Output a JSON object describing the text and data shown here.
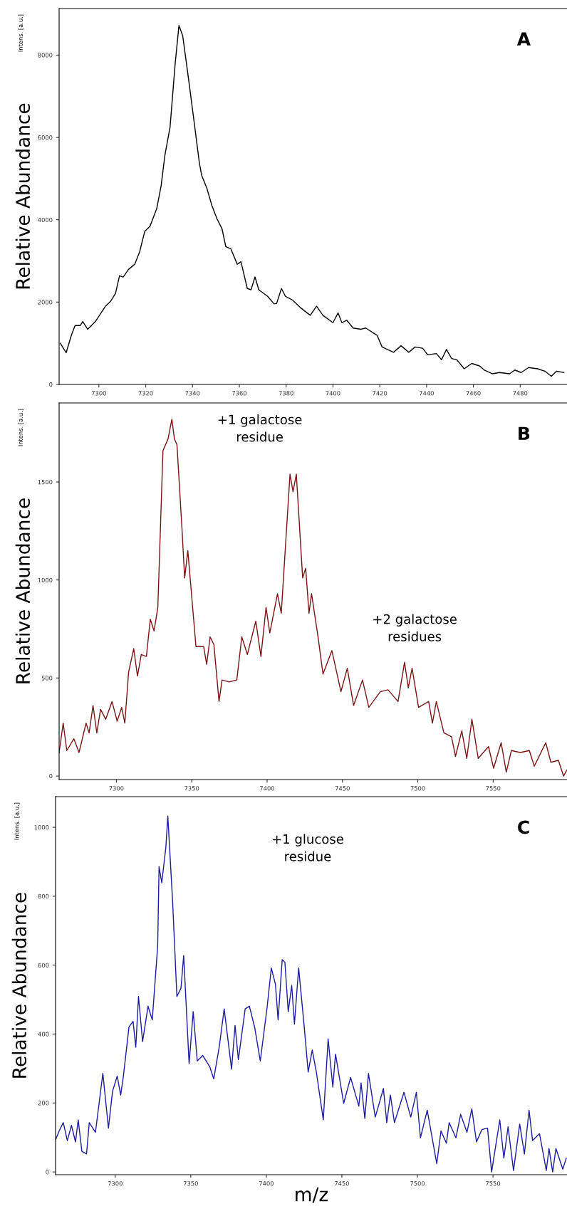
{
  "chart_data": [
    {
      "type": "line",
      "ylabel": "Relative Abundance",
      "annotations": [
        "A",
        "Intens. [a.u.]"
      ],
      "xlim": [
        7283,
        7500
      ],
      "xticks": [
        7300,
        7320,
        7340,
        7360,
        7380,
        7400,
        7420,
        7440,
        7460,
        7480
      ],
      "ylim": [
        0,
        9130
      ],
      "yticks": [
        0,
        2000,
        4000,
        6000,
        8000
      ],
      "grid": false,
      "legend": false,
      "series": [
        {
          "color": "#000000",
          "x": [
            7283.5,
            7286,
            7288.2,
            7289.8,
            7292,
            7293.1,
            7295.2,
            7298.5,
            7300.6,
            7302.8,
            7305,
            7307.1,
            7308.8,
            7310.4,
            7312.6,
            7315.3,
            7317.4,
            7319.6,
            7321.8,
            7324.7,
            7326.6,
            7328.2,
            7330.4,
            7332.6,
            7334.2,
            7335.8,
            7338.3,
            7340.7,
            7342.9,
            7343.9,
            7346.1,
            7348.3,
            7350.4,
            7352.6,
            7354.2,
            7356.4,
            7359.1,
            7360.7,
            7363.4,
            7365,
            7366.7,
            7368.3,
            7372.1,
            7374.8,
            7375.9,
            7378,
            7379.7,
            7382.7,
            7386,
            7390.3,
            7393,
            7395.7,
            7400,
            7402.2,
            7403.8,
            7405.9,
            7408.6,
            7411.9,
            7414,
            7418.9,
            7421,
            7425.9,
            7429.1,
            7432.4,
            7435.1,
            7438.3,
            7440.5,
            7444.2,
            7446.4,
            7448.5,
            7450.7,
            7452.9,
            7456.1,
            7459.3,
            7462.6,
            7464.7,
            7468,
            7471.2,
            7475.5,
            7477.7,
            7480.4,
            7483.6,
            7487.4,
            7490.6,
            7493.3,
            7495.5,
            7498.7
          ],
          "values": [
            1000,
            770,
            1190,
            1430,
            1430,
            1530,
            1340,
            1530,
            1710,
            1900,
            2020,
            2210,
            2640,
            2610,
            2790,
            2920,
            3220,
            3720,
            3840,
            4270,
            4830,
            5570,
            6250,
            7800,
            8720,
            8470,
            7420,
            6370,
            5390,
            5080,
            4770,
            4340,
            4030,
            3780,
            3350,
            3290,
            2920,
            2980,
            2330,
            2300,
            2610,
            2300,
            2140,
            1960,
            1960,
            2330,
            2140,
            2050,
            1870,
            1680,
            1900,
            1680,
            1500,
            1740,
            1500,
            1560,
            1370,
            1340,
            1370,
            1190,
            910,
            780,
            940,
            780,
            910,
            880,
            720,
            750,
            600,
            850,
            630,
            600,
            380,
            510,
            450,
            350,
            260,
            290,
            260,
            350,
            290,
            410,
            380,
            320,
            200,
            320,
            290
          ]
        }
      ]
    },
    {
      "type": "line",
      "ylabel": "Relative Abundance",
      "annotations": [
        "B",
        "Intens. [a.u.]",
        "+1 galactose\nresidue",
        "+2 galactose\nresidues"
      ],
      "xlim": [
        7262,
        7599
      ],
      "xticks": [
        7300,
        7350,
        7400,
        7450,
        7500,
        7550
      ],
      "ylim": [
        -18,
        1903
      ],
      "yticks": [
        0,
        500,
        1000,
        1500
      ],
      "grid": false,
      "legend": false,
      "series": [
        {
          "color": "#7a1414",
          "x": [
            7262,
            7264.7,
            7267.1,
            7271.8,
            7275.2,
            7279.9,
            7281.9,
            7284.5,
            7287,
            7289.5,
            7292.9,
            7297.1,
            7300.5,
            7303.5,
            7305.6,
            7308.1,
            7311.5,
            7314,
            7316.5,
            7319.9,
            7322.5,
            7325,
            7327.5,
            7330.9,
            7334.3,
            7336.8,
            7338.5,
            7340.2,
            7343.6,
            7345.3,
            7347.4,
            7352.8,
            7357.9,
            7359.9,
            7362.2,
            7364.7,
            7368.1,
            7370.1,
            7374.8,
            7379.9,
            7383.2,
            7386.9,
            7392.5,
            7395.9,
            7399.3,
            7401.8,
            7406.9,
            7409.4,
            7411.6,
            7415.2,
            7417.2,
            7419.4,
            7423.6,
            7425.6,
            7427.8,
            7429.5,
            7433.8,
            7437.1,
            7443,
            7449,
            7453.2,
            7457.4,
            7463.3,
            7467.5,
            7475.1,
            7480.2,
            7486.9,
            7491.2,
            7493.7,
            7496.2,
            7500.5,
            7507.2,
            7509.7,
            7512.3,
            7517.3,
            7522.4,
            7525,
            7529.2,
            7532.5,
            7535.9,
            7540.1,
            7546.9,
            7550.3,
            7555.3,
            7558.7,
            7562.1,
            7568,
            7574,
            7577.3,
            7584.9,
            7588.3,
            7593.3,
            7596.7,
            7598.9
          ],
          "values": [
            120,
            270,
            130,
            190,
            120,
            270,
            220,
            360,
            220,
            340,
            290,
            380,
            280,
            350,
            270,
            530,
            650,
            510,
            620,
            610,
            800,
            740,
            860,
            1660,
            1720,
            1820,
            1720,
            1690,
            1250,
            1010,
            1150,
            660,
            660,
            570,
            710,
            670,
            380,
            490,
            480,
            490,
            710,
            620,
            790,
            610,
            860,
            730,
            930,
            830,
            1100,
            1540,
            1450,
            1540,
            1010,
            1060,
            830,
            930,
            710,
            520,
            640,
            430,
            550,
            360,
            490,
            350,
            430,
            440,
            380,
            580,
            450,
            550,
            350,
            380,
            270,
            380,
            220,
            200,
            100,
            230,
            90,
            290,
            90,
            150,
            40,
            170,
            20,
            130,
            120,
            130,
            50,
            170,
            70,
            80,
            0,
            30
          ]
        }
      ]
    },
    {
      "type": "line",
      "xlabel": "m/z",
      "ylabel": "Relative Abundance",
      "annotations": [
        "C",
        "Intens. [a.u.]",
        "+1 glucose\nresidue"
      ],
      "xlim": [
        7260.5,
        7599
      ],
      "xticks": [
        7300,
        7350,
        7400,
        7450,
        7500,
        7550
      ],
      "ylim": [
        -8,
        1089
      ],
      "yticks": [
        0,
        200,
        400,
        600,
        800,
        1000
      ],
      "grid": false,
      "legend": false,
      "series": [
        {
          "color": "#1c1ca0",
          "x": [
            7260.7,
            7262.9,
            7265.6,
            7268.3,
            7271,
            7273.7,
            7275.5,
            7277.9,
            7281,
            7282.8,
            7286.9,
            7291.8,
            7295.5,
            7298.2,
            7301.3,
            7303.6,
            7305.4,
            7309.1,
            7311.8,
            7313.6,
            7315.4,
            7318.1,
            7321.7,
            7324.5,
            7328.1,
            7329,
            7330.8,
            7333.5,
            7334.8,
            7338,
            7340.8,
            7343.5,
            7345.3,
            7348.9,
            7351.6,
            7354.3,
            7357.9,
            7362.5,
            7365.2,
            7368.8,
            7372.1,
            7377,
            7379.3,
            7381.5,
            7386,
            7388.8,
            7392.4,
            7396,
            7400.5,
            7403.3,
            7406,
            7407.8,
            7410.5,
            7412.3,
            7414.5,
            7416.8,
            7418.6,
            7421.4,
            7425,
            7427.7,
            7430.4,
            7433.1,
            7437.7,
            7440.9,
            7444,
            7445.8,
            7451.2,
            7455.8,
            7461.2,
            7462.7,
            7465.2,
            7467.6,
            7472.1,
            7477.5,
            7479.7,
            7482.1,
            7484.8,
            7491.1,
            7495.6,
            7499.3,
            7502,
            7506.5,
            7512.8,
            7515.6,
            7519.2,
            7521,
            7525.5,
            7528.6,
            7532.8,
            7536,
            7539.1,
            7542.7,
            7546.4,
            7549.1,
            7554.5,
            7557.2,
            7560,
            7563.6,
            7567.7,
            7570.8,
            7573.9,
            7576.2,
            7580.8,
            7585.3,
            7587.1,
            7589.5,
            7591.7,
            7596.2,
            7598.5
          ],
          "values": [
            95,
            119,
            143,
            91,
            135,
            87,
            151,
            60,
            52,
            143,
            115,
            286,
            127,
            234,
            278,
            223,
            278,
            421,
            437,
            362,
            509,
            378,
            481,
            441,
            656,
            886,
            839,
            942,
            1033,
            783,
            509,
            533,
            628,
            314,
            465,
            322,
            338,
            306,
            270,
            362,
            473,
            298,
            425,
            326,
            473,
            481,
            417,
            322,
            477,
            592,
            545,
            441,
            616,
            608,
            465,
            541,
            429,
            592,
            425,
            290,
            354,
            290,
            151,
            386,
            246,
            342,
            199,
            274,
            191,
            258,
            155,
            286,
            159,
            242,
            143,
            223,
            143,
            231,
            159,
            231,
            99,
            179,
            24,
            119,
            83,
            143,
            99,
            167,
            115,
            183,
            87,
            123,
            127,
            0,
            151,
            40,
            131,
            4,
            139,
            52,
            179,
            91,
            111,
            4,
            68,
            0,
            68,
            8,
            40
          ]
        }
      ]
    }
  ]
}
